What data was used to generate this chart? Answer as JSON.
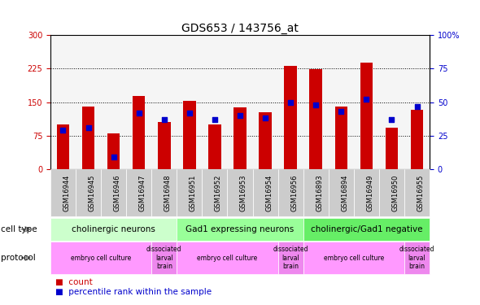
{
  "title": "GDS653 / 143756_at",
  "samples": [
    "GSM16944",
    "GSM16945",
    "GSM16946",
    "GSM16947",
    "GSM16948",
    "GSM16951",
    "GSM16952",
    "GSM16953",
    "GSM16954",
    "GSM16956",
    "GSM16893",
    "GSM16894",
    "GSM16949",
    "GSM16950",
    "GSM16955"
  ],
  "counts": [
    100,
    140,
    80,
    163,
    105,
    153,
    100,
    138,
    128,
    232,
    223,
    140,
    238,
    93,
    133
  ],
  "percentile": [
    29,
    31,
    9,
    42,
    37,
    42,
    37,
    40,
    38,
    50,
    48,
    43,
    52,
    37,
    47
  ],
  "ylim_left": [
    0,
    300
  ],
  "ylim_right": [
    0,
    100
  ],
  "yticks_left": [
    0,
    75,
    150,
    225,
    300
  ],
  "yticks_right": [
    0,
    25,
    50,
    75,
    100
  ],
  "bar_color": "#cc0000",
  "dot_color": "#0000cc",
  "plot_bg": "#f5f5f5",
  "cell_type_groups": [
    {
      "label": "cholinergic neurons",
      "start": 0,
      "end": 5,
      "color": "#ccffcc"
    },
    {
      "label": "Gad1 expressing neurons",
      "start": 5,
      "end": 10,
      "color": "#99ff99"
    },
    {
      "label": "cholinergic/Gad1 negative",
      "start": 10,
      "end": 15,
      "color": "#66ee66"
    }
  ],
  "protocol_groups": [
    {
      "label": "embryo cell culture",
      "start": 0,
      "end": 4,
      "color": "#ff99ff"
    },
    {
      "label": "dissociated\nlarval\nbrain",
      "start": 4,
      "end": 5,
      "color": "#ee88ee"
    },
    {
      "label": "embryo cell culture",
      "start": 5,
      "end": 9,
      "color": "#ff99ff"
    },
    {
      "label": "dissociated\nlarval\nbrain",
      "start": 9,
      "end": 10,
      "color": "#ee88ee"
    },
    {
      "label": "embryo cell culture",
      "start": 10,
      "end": 14,
      "color": "#ff99ff"
    },
    {
      "label": "dissociated\nlarval\nbrain",
      "start": 14,
      "end": 15,
      "color": "#ee88ee"
    }
  ],
  "title_fontsize": 10,
  "tick_fontsize": 7,
  "annot_fontsize": 7.5
}
